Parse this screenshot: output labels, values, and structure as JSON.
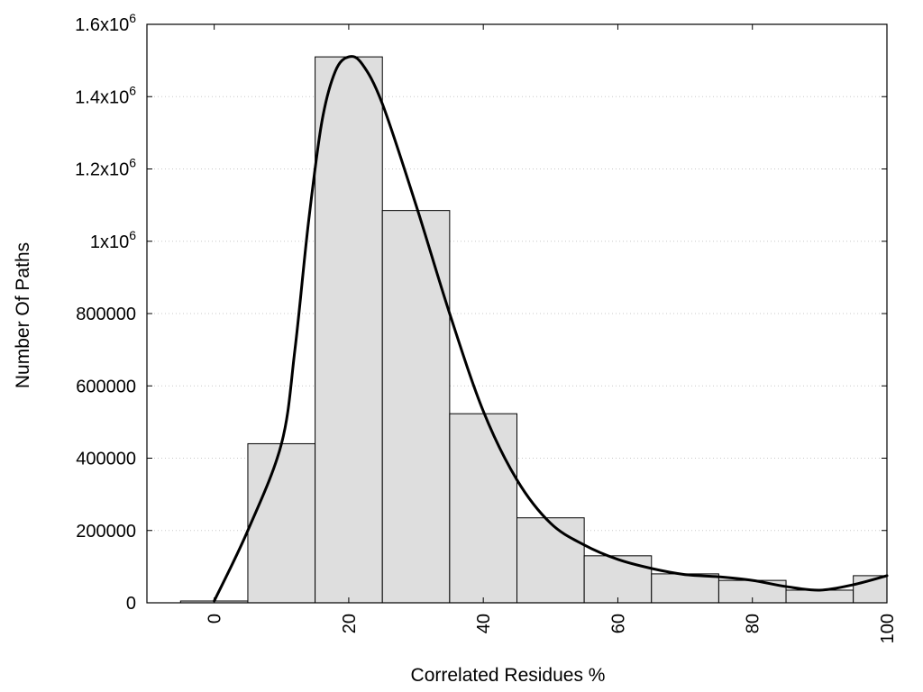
{
  "chart_data": {
    "type": "bar",
    "title": "",
    "xlabel": "Correlated Residues %",
    "ylabel": "Number Of Paths",
    "xlim": [
      -10,
      100
    ],
    "ylim": [
      0,
      1600000
    ],
    "bin_width": 10,
    "grid": {
      "x": false,
      "y": true
    },
    "legend": "none",
    "colors": {
      "bar_fill": "#dedede",
      "bar_stroke": "#000000",
      "curve": "#000000"
    },
    "x_ticks": [
      {
        "value": 0,
        "label": "0"
      },
      {
        "value": 20,
        "label": "20"
      },
      {
        "value": 40,
        "label": "40"
      },
      {
        "value": 60,
        "label": "60"
      },
      {
        "value": 80,
        "label": "80"
      },
      {
        "value": 100,
        "label": "100"
      }
    ],
    "y_ticks": [
      {
        "value": 0,
        "label": "0",
        "sup": ""
      },
      {
        "value": 200000,
        "label": "200000",
        "sup": ""
      },
      {
        "value": 400000,
        "label": "400000",
        "sup": ""
      },
      {
        "value": 600000,
        "label": "600000",
        "sup": ""
      },
      {
        "value": 800000,
        "label": "800000",
        "sup": ""
      },
      {
        "value": 1000000,
        "label": "1x10",
        "sup": "6"
      },
      {
        "value": 1200000,
        "label": "1.2x10",
        "sup": "6"
      },
      {
        "value": 1400000,
        "label": "1.4x10",
        "sup": "6"
      },
      {
        "value": 1600000,
        "label": "1.6x10",
        "sup": "6"
      }
    ],
    "bars": [
      {
        "x": 0,
        "value": 5000
      },
      {
        "x": 10,
        "value": 440000
      },
      {
        "x": 20,
        "value": 1510000
      },
      {
        "x": 30,
        "value": 1085000
      },
      {
        "x": 40,
        "value": 523000
      },
      {
        "x": 50,
        "value": 235000
      },
      {
        "x": 60,
        "value": 130000
      },
      {
        "x": 70,
        "value": 80000
      },
      {
        "x": 80,
        "value": 62000
      },
      {
        "x": 90,
        "value": 35000
      },
      {
        "x": 100,
        "value": 75000
      }
    ],
    "curve": {
      "type": "line",
      "points": [
        [
          0,
          5000
        ],
        [
          5,
          200000
        ],
        [
          10,
          440000
        ],
        [
          12,
          700000
        ],
        [
          14,
          1050000
        ],
        [
          16,
          1330000
        ],
        [
          18,
          1470000
        ],
        [
          20,
          1510000
        ],
        [
          22,
          1490000
        ],
        [
          25,
          1380000
        ],
        [
          30,
          1100000
        ],
        [
          35,
          800000
        ],
        [
          40,
          530000
        ],
        [
          45,
          340000
        ],
        [
          50,
          220000
        ],
        [
          55,
          160000
        ],
        [
          60,
          120000
        ],
        [
          65,
          95000
        ],
        [
          70,
          78000
        ],
        [
          75,
          72000
        ],
        [
          80,
          62000
        ],
        [
          85,
          45000
        ],
        [
          90,
          35000
        ],
        [
          95,
          50000
        ],
        [
          100,
          75000
        ]
      ]
    }
  }
}
